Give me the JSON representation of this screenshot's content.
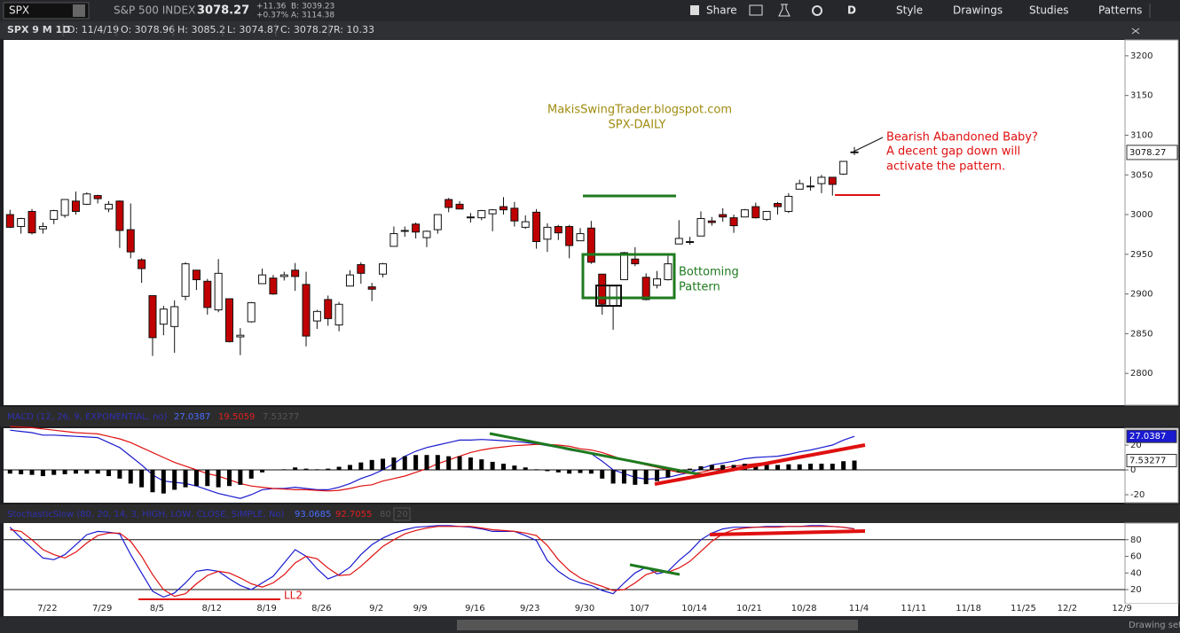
{
  "toolbar": {
    "symbol": "SPX",
    "description": "S&P 500 INDEX",
    "last": "3078.27",
    "change": "+11.36",
    "change_pct": "+0.37%",
    "bid": "B: 3039.23",
    "ask": "A: 3114.38",
    "buttons": [
      "Share",
      "D",
      "Style",
      "Drawings",
      "Studies",
      "Patterns"
    ]
  },
  "status_bar": "Drawing set: S",
  "chart_data": [
    {
      "type": "candlestick",
      "info": [
        "SPX 9 M 1D",
        "D: 11/4/19",
        "O: 3078.96",
        "H: 3085.2",
        "L: 3074.87",
        "C: 3078.27",
        "R: 10.33"
      ],
      "annotations": [
        "MakisSwingTrader.blogspot.com",
        "SPX-DAILY",
        "Bearish Abandoned Baby?",
        "A decent gap down will",
        "activate the pattern.",
        "Bottoming",
        "Pattern",
        "LL2"
      ],
      "categories": [
        null,
        null,
        null,
        "7/22",
        null,
        null,
        null,
        null,
        "7/29",
        null,
        null,
        null,
        null,
        "8/5",
        null,
        null,
        null,
        null,
        "8/12",
        null,
        null,
        null,
        null,
        "8/19",
        null,
        null,
        null,
        null,
        "8/26",
        null,
        null,
        null,
        null,
        "9/2",
        null,
        null,
        null,
        "9/9",
        null,
        null,
        null,
        null,
        "9/16",
        null,
        null,
        null,
        null,
        "9/23",
        null,
        null,
        null,
        null,
        "9/30",
        null,
        null,
        null,
        null,
        "10/7",
        null,
        null,
        null,
        null,
        "10/14",
        null,
        null,
        null,
        null,
        "10/21",
        null,
        null,
        null,
        null,
        "10/28",
        null,
        null,
        null,
        null,
        "11/4",
        null,
        null,
        null,
        null,
        "11/11",
        null,
        null,
        null,
        null,
        "11/18",
        null,
        null,
        null,
        null,
        "11/25",
        null,
        null,
        null,
        "12/2",
        null,
        null,
        null,
        null,
        "12/9"
      ],
      "open": [
        3000,
        2985,
        3004,
        2982,
        2994,
        2999,
        3017,
        3013,
        3024,
        3007,
        3017,
        2981,
        2943,
        2898,
        2862,
        2859,
        2897,
        2930,
        2916,
        2880,
        2894,
        2846,
        2865,
        2913,
        2920,
        2922,
        2930,
        2912,
        2866,
        2893,
        2861,
        2910,
        2937,
        2909,
        2925,
        2960,
        2980,
        2988,
        2971,
        2981,
        3019,
        3013,
        2996,
        2996,
        3001,
        3010,
        3008,
        2984,
        3003,
        2969,
        2985,
        2985,
        2967,
        2983,
        2925,
        2885,
        2918,
        2944,
        2921,
        2911,
        2918,
        2963,
        2965,
        2973,
        2992,
        3000,
        2996,
        2997,
        3010,
        2994,
        3014,
        3004,
        3032,
        3035,
        3039,
        3047,
        3051,
        3078.96,
        null,
        null,
        null,
        null,
        null,
        null,
        null,
        null,
        null,
        null,
        null,
        null,
        null,
        null,
        null,
        null,
        null,
        null,
        null,
        null,
        null,
        null,
        null,
        null
      ],
      "high": [
        3006,
        2996,
        3007,
        2990,
        3006,
        3019,
        3029,
        3028,
        3025,
        3017,
        3018,
        3014,
        2945,
        2898,
        2885,
        2892,
        2940,
        2930,
        2919,
        2944,
        2894,
        2857,
        2890,
        2932,
        2924,
        2928,
        2939,
        2928,
        2880,
        2898,
        2890,
        2930,
        2940,
        2914,
        2939,
        2985,
        2985,
        2990,
        2980,
        3000,
        3021,
        3017,
        3002,
        3006,
        3007,
        3022,
        3016,
        2999,
        3007,
        2989,
        2987,
        2987,
        2983,
        2992,
        2925,
        2911,
        2953,
        2959,
        2926,
        2929,
        2948,
        2993,
        2972,
        3004,
        2997,
        3008,
        3000,
        3007,
        3015,
        3004,
        3016,
        3027,
        3044,
        3048,
        3050,
        3047,
        3067,
        3085.2,
        null,
        null,
        null,
        null,
        null,
        null,
        null,
        null,
        null,
        null,
        null,
        null,
        null,
        null,
        null,
        null,
        null,
        null,
        null,
        null,
        null,
        null,
        null,
        null
      ],
      "low": [
        2983,
        2976,
        2975,
        2976,
        2988,
        2996,
        3000,
        3012,
        3014,
        3003,
        2958,
        2945,
        2914,
        2822,
        2848,
        2826,
        2892,
        2905,
        2874,
        2877,
        2839,
        2823,
        2864,
        2913,
        2899,
        2917,
        2904,
        2834,
        2856,
        2860,
        2853,
        2910,
        2913,
        2891,
        2921,
        2960,
        2972,
        2970,
        2959,
        2976,
        3003,
        3007,
        2990,
        2993,
        2979,
        3000,
        2985,
        2982,
        2957,
        2953,
        2968,
        2945,
        2967,
        2938,
        2874,
        2855,
        2918,
        2935,
        2892,
        2907,
        2917,
        2963,
        2962,
        2973,
        2986,
        2991,
        2977,
        2997,
        2995,
        2992,
        3000,
        3002,
        3032,
        3030,
        3027,
        3024,
        3050,
        3074.87,
        null,
        null,
        null,
        null,
        null,
        null,
        null,
        null,
        null,
        null,
        null,
        null,
        null,
        null,
        null,
        null,
        null,
        null,
        null,
        null,
        null,
        null,
        null,
        null
      ],
      "close": [
        2984,
        2995,
        2977,
        2985,
        3005,
        3019,
        3004,
        3026,
        3020,
        3013,
        2980,
        2953,
        2932,
        2845,
        2881,
        2884,
        2938,
        2918,
        2883,
        2926,
        2840,
        2848,
        2889,
        2924,
        2900,
        2924,
        2922,
        2847,
        2878,
        2869,
        2887,
        2924,
        2926,
        2906,
        2938,
        2976,
        2979,
        2978,
        2979,
        3000,
        3009,
        3007,
        2997,
        3005,
        3006,
        3006,
        2992,
        2991,
        2966,
        2984,
        2977,
        2961,
        2976,
        2940,
        2887,
        2910,
        2952,
        2938,
        2893,
        2919,
        2938,
        2970,
        2966,
        2995,
        2990,
        2997,
        2986,
        3006,
        2996,
        3004,
        3010,
        3023,
        3039,
        3036,
        3047,
        3038,
        3067,
        3078.27,
        null,
        null,
        null,
        null,
        null,
        null,
        null,
        null,
        null,
        null,
        null,
        null,
        null,
        null,
        null,
        null,
        null,
        null,
        null,
        null,
        null,
        null,
        null,
        null
      ],
      "up_color": "#ffffff",
      "down_color": "#c00000",
      "ylim": [
        2760,
        3220
      ],
      "yticks": [
        2800,
        2850,
        2900,
        2950,
        3000,
        3050,
        3100,
        3150,
        3200
      ],
      "grid": false
    },
    {
      "type": "combo",
      "title": "MACD (12, 26, 9, EXPONENTIAL, no)",
      "series": [
        {
          "color": "#1a1ad0",
          "mark": "line",
          "values": [
            32,
            31,
            30,
            28,
            28,
            27.5,
            27,
            26.5,
            26,
            22,
            18,
            11,
            4,
            -4,
            -9,
            -10,
            -11,
            -13,
            -16,
            -19,
            -21,
            -23,
            -20,
            -16,
            -15,
            -15,
            -14,
            -15,
            -16,
            -16,
            -14,
            -11,
            -7,
            -4,
            0,
            5,
            11,
            15,
            18,
            20,
            22,
            24,
            24,
            24.5,
            24,
            23.5,
            23,
            22,
            21,
            19.5,
            18,
            16,
            14.5,
            13,
            7,
            0,
            -3,
            -6,
            -7.5,
            -7,
            -6,
            -4,
            -2,
            1,
            4,
            5.5,
            7,
            9,
            10,
            10.5,
            11,
            12.5,
            14.5,
            16,
            18,
            20,
            24,
            27.0387,
            null,
            null,
            null,
            null,
            null,
            null,
            null,
            null,
            null,
            null,
            null,
            null,
            null,
            null,
            null,
            null,
            null,
            null,
            null,
            null,
            null,
            null,
            null,
            null
          ]
        },
        {
          "color": "#e01010",
          "mark": "line",
          "values": [
            35,
            34.5,
            34,
            33,
            32,
            31,
            30,
            29.5,
            29,
            27,
            25,
            22,
            18,
            14,
            10,
            6,
            3,
            0,
            -3,
            -5,
            -8,
            -11,
            -13,
            -14,
            -15,
            -15.5,
            -16,
            -16,
            -16.5,
            -17,
            -16.5,
            -15,
            -13,
            -12,
            -9,
            -7,
            -5,
            -2,
            1,
            5,
            8,
            11,
            14,
            16,
            17.5,
            18.5,
            19.5,
            20,
            20.5,
            20.5,
            20,
            19,
            17,
            16,
            14,
            11,
            8,
            6,
            4,
            2,
            0,
            -2,
            -3,
            -2,
            0,
            1.5,
            3,
            4,
            5,
            6,
            7,
            8,
            10,
            11,
            13,
            15,
            17,
            19.5059,
            null,
            null,
            null,
            null,
            null,
            null,
            null,
            null,
            null,
            null,
            null,
            null,
            null,
            null,
            null,
            null,
            null,
            null,
            null,
            null,
            null,
            null,
            null,
            null
          ]
        },
        {
          "color": "#000000",
          "mark": "bar",
          "values": [
            -3,
            -3.5,
            -4,
            -5,
            -4,
            -3.5,
            -3,
            -3,
            -3,
            -5,
            -7,
            -11,
            -14,
            -18,
            -19,
            -16,
            -14,
            -13,
            -13,
            -14,
            -13,
            -12,
            -7,
            -2,
            0,
            0.5,
            2,
            1,
            0.5,
            1,
            2.5,
            4,
            6,
            8,
            9,
            10,
            11,
            12,
            12,
            12,
            11,
            11,
            10,
            8.5,
            6.5,
            5,
            3.5,
            2,
            0.5,
            -1,
            -2,
            -3,
            -2.5,
            -3,
            -7,
            -11,
            -11,
            -12,
            -11.5,
            -9,
            -6,
            -2,
            1,
            3,
            4,
            4,
            4,
            5,
            5,
            4.5,
            4,
            4.5,
            4.5,
            5,
            5,
            5,
            7,
            7.53277,
            null,
            null,
            null,
            null,
            null,
            null,
            null,
            null,
            null,
            null,
            null,
            null,
            null,
            null,
            null,
            null,
            null,
            null,
            null,
            null,
            null,
            null,
            null,
            null
          ]
        }
      ],
      "ylim": [
        -26.4,
        33.6
      ],
      "yticks": [
        -20,
        0,
        20
      ]
    },
    {
      "type": "line",
      "title": "StochasticSlow (80, 20, 14, 3, HIGH, LOW, CLOSE, SIMPLE, No)",
      "series": [
        {
          "color": "#1a1ad0",
          "values": [
            95,
            82,
            70,
            58,
            56,
            62,
            74,
            86,
            90,
            89,
            87,
            62,
            40,
            18,
            11,
            16,
            28,
            42,
            44,
            42,
            33,
            25,
            20,
            28,
            36,
            52,
            68,
            60,
            45,
            33,
            38,
            47,
            62,
            74,
            82,
            88,
            92,
            95,
            96,
            97,
            97,
            96,
            95,
            93,
            90,
            90,
            90,
            85,
            79,
            55,
            42,
            33,
            28,
            25,
            19,
            15,
            28,
            40,
            47,
            39,
            42,
            55,
            66,
            80,
            88,
            93,
            95,
            95,
            95,
            96,
            96,
            96,
            96,
            97,
            97,
            96,
            95,
            93.0685,
            null,
            null,
            null,
            null,
            null,
            null,
            null,
            null,
            null,
            null,
            null,
            null,
            null,
            null,
            null,
            null,
            null,
            null,
            null,
            null,
            null,
            null,
            null,
            null
          ]
        },
        {
          "color": "#e01010",
          "values": [
            92,
            90,
            80,
            68,
            62,
            58,
            65,
            76,
            85,
            88,
            88,
            78,
            60,
            38,
            20,
            12,
            15,
            27,
            37,
            42,
            40,
            34,
            27,
            23,
            28,
            38,
            52,
            60,
            57,
            46,
            37,
            38,
            48,
            60,
            72,
            80,
            87,
            91,
            94,
            96,
            96,
            96,
            96,
            94,
            92,
            91,
            90,
            88,
            85,
            73,
            56,
            43,
            34,
            28,
            24,
            19,
            20,
            28,
            38,
            42,
            41,
            46,
            54,
            66,
            78,
            87,
            92,
            94,
            95,
            95,
            95,
            96,
            96,
            96,
            96,
            96,
            95,
            92.7055,
            null,
            null,
            null,
            null,
            null,
            null,
            null,
            null,
            null,
            null,
            null,
            null,
            null,
            null,
            null,
            null,
            null,
            null,
            null,
            null,
            null,
            null,
            null,
            null
          ]
        }
      ],
      "levels": [
        80,
        20
      ],
      "ylim": [
        3,
        100
      ],
      "yticks": [
        20,
        40,
        60,
        80
      ]
    }
  ]
}
